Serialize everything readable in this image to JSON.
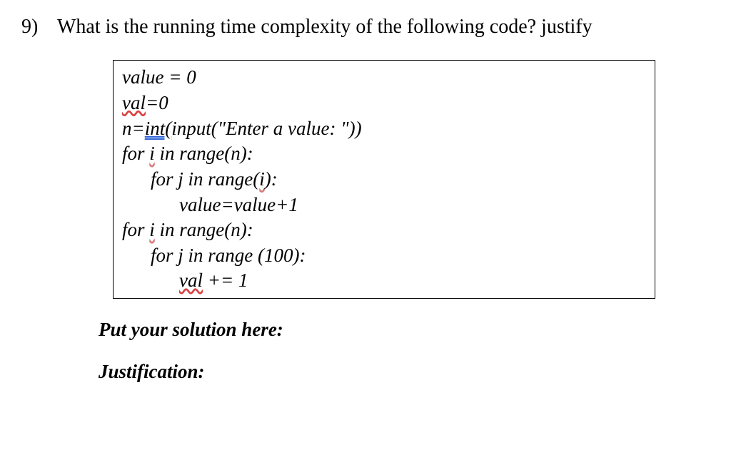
{
  "question": {
    "number": "9)",
    "text": "What is the running time complexity of the following code? justify "
  },
  "code": {
    "l1": "value = 0",
    "l2a": "val",
    "l2b": "=0",
    "l3a": "n=",
    "l3b": "int(",
    "l3c": "input(\"Enter a value: \"))",
    "l4a": "for ",
    "l4b": "i",
    "l4c": " in range(n):",
    "l5a": "for j in range(",
    "l5b": "i",
    "l5c": "):",
    "l6": "value=value+1",
    "l7a": "for ",
    "l7b": "i",
    "l7c": " in range(n):",
    "l8": "for j in range (100):",
    "l9a": "val",
    "l9b": " += 1"
  },
  "prompts": {
    "solution": "Put your solution here:",
    "justification": "Justification:"
  }
}
